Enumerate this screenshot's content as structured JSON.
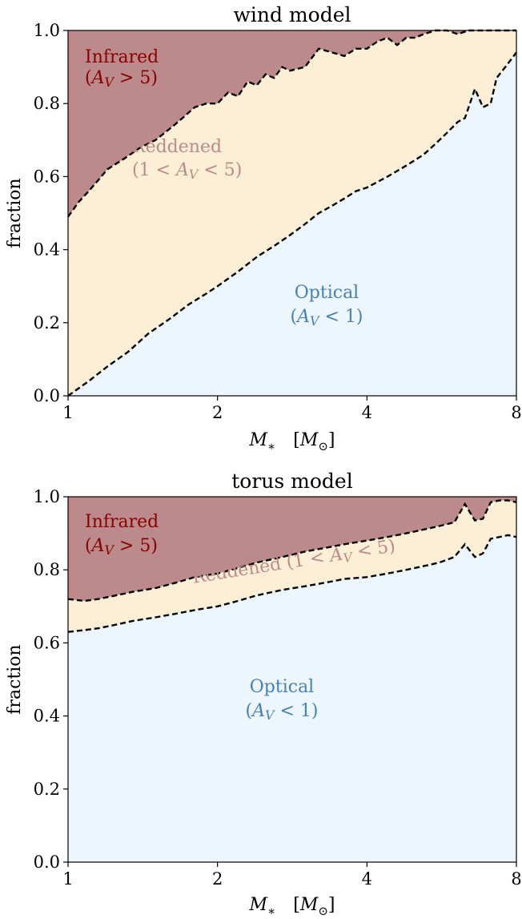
{
  "chart_data": [
    {
      "type": "area",
      "title": "wind model",
      "xlabel": "M* [M⊙]",
      "ylabel": "fraction",
      "x_scale": "log",
      "xlim": [
        1,
        8
      ],
      "ylim": [
        0,
        1
      ],
      "xticks": [
        1,
        2,
        4,
        8
      ],
      "xtick_labels": [
        "1",
        "2",
        "4",
        "8"
      ],
      "yticks": [
        0,
        0.2,
        0.4,
        0.6,
        0.8,
        1.0
      ],
      "ytick_labels": [
        "0.0",
        "0.2",
        "0.4",
        "0.6",
        "0.8",
        "1.0"
      ],
      "grid": false,
      "colors": {
        "infrared": "#bc8a8a",
        "reddened": "#fdefd6",
        "optical": "#eef6fd"
      },
      "region_labels": {
        "infrared": {
          "line1": "Infrared",
          "line2": "(AV > 5)",
          "color": "#8b0000"
        },
        "reddened": {
          "line1": "Reddened",
          "line2": "(1 < AV < 5)",
          "color": "#bc8a8a"
        },
        "optical": {
          "line1": "Optical",
          "line2": "(AV < 1)",
          "color": "#4682b4"
        }
      },
      "series": [
        {
          "name": "Optical",
          "x": [
            1.0,
            1.1,
            1.2,
            1.32,
            1.45,
            1.6,
            1.75,
            1.9,
            2.0,
            2.2,
            2.4,
            2.6,
            2.8,
            3.0,
            3.2,
            3.4,
            3.6,
            3.8,
            4.0,
            4.4,
            4.8,
            5.2,
            5.5,
            5.8,
            6.1,
            6.3,
            6.6,
            6.85,
            7.1,
            7.3,
            7.6,
            7.8,
            8.0
          ],
          "values": [
            0.0,
            0.04,
            0.08,
            0.12,
            0.17,
            0.21,
            0.25,
            0.28,
            0.3,
            0.34,
            0.38,
            0.41,
            0.44,
            0.47,
            0.5,
            0.52,
            0.54,
            0.56,
            0.57,
            0.6,
            0.63,
            0.66,
            0.69,
            0.72,
            0.75,
            0.76,
            0.84,
            0.79,
            0.8,
            0.87,
            0.9,
            0.92,
            0.94
          ]
        },
        {
          "name": "Reddened",
          "x": [
            1.0,
            1.05,
            1.1,
            1.15,
            1.2,
            1.3,
            1.4,
            1.5,
            1.6,
            1.7,
            1.8,
            1.9,
            2.0,
            2.1,
            2.2,
            2.3,
            2.4,
            2.5,
            2.6,
            2.7,
            2.8,
            3.0,
            3.2,
            3.4,
            3.6,
            3.8,
            4.0,
            4.2,
            4.4,
            4.6,
            4.8,
            5.0,
            5.2,
            5.5,
            5.8,
            6.1,
            6.4,
            6.8,
            7.2,
            7.6,
            8.0
          ],
          "values": [
            0.49,
            0.53,
            0.56,
            0.59,
            0.62,
            0.65,
            0.68,
            0.7,
            0.73,
            0.76,
            0.79,
            0.8,
            0.8,
            0.83,
            0.82,
            0.86,
            0.85,
            0.88,
            0.87,
            0.9,
            0.89,
            0.9,
            0.95,
            0.94,
            0.93,
            0.95,
            0.95,
            0.97,
            0.98,
            0.96,
            0.98,
            0.98,
            0.99,
            1.0,
            1.0,
            0.99,
            1.0,
            1.0,
            1.0,
            1.0,
            1.0
          ]
        }
      ]
    },
    {
      "type": "area",
      "title": "torus model",
      "xlabel": "M* [M⊙]",
      "ylabel": "fraction",
      "x_scale": "log",
      "xlim": [
        1,
        8
      ],
      "ylim": [
        0,
        1
      ],
      "xticks": [
        1,
        2,
        4,
        8
      ],
      "xtick_labels": [
        "1",
        "2",
        "4",
        "8"
      ],
      "yticks": [
        0,
        0.2,
        0.4,
        0.6,
        0.8,
        1.0
      ],
      "ytick_labels": [
        "0.0",
        "0.2",
        "0.4",
        "0.6",
        "0.8",
        "1.0"
      ],
      "grid": false,
      "colors": {
        "infrared": "#bc8a8a",
        "reddened": "#fdefd6",
        "optical": "#eef6fd"
      },
      "region_labels": {
        "infrared": {
          "line1": "Infrared",
          "line2": "(AV > 5)",
          "color": "#8b0000"
        },
        "reddened": {
          "line1": "Reddened (1 < AV < 5)",
          "line2": "",
          "color": "#bc8a8a"
        },
        "optical": {
          "line1": "Optical",
          "line2": "(AV < 1)",
          "color": "#4682b4"
        }
      },
      "series": [
        {
          "name": "Optical",
          "x": [
            1.0,
            1.08,
            1.15,
            1.25,
            1.35,
            1.5,
            1.65,
            1.8,
            2.0,
            2.2,
            2.4,
            2.7,
            3.0,
            3.3,
            3.6,
            4.0,
            4.4,
            4.8,
            5.2,
            5.6,
            6.0,
            6.3,
            6.6,
            6.85,
            7.1,
            7.4,
            7.7,
            8.0
          ],
          "values": [
            0.63,
            0.635,
            0.64,
            0.65,
            0.66,
            0.67,
            0.68,
            0.69,
            0.7,
            0.715,
            0.73,
            0.745,
            0.755,
            0.765,
            0.775,
            0.78,
            0.79,
            0.8,
            0.81,
            0.82,
            0.835,
            0.87,
            0.835,
            0.845,
            0.885,
            0.89,
            0.895,
            0.89
          ]
        },
        {
          "name": "Reddened",
          "x": [
            1.0,
            1.08,
            1.15,
            1.25,
            1.35,
            1.5,
            1.65,
            1.8,
            2.0,
            2.2,
            2.4,
            2.7,
            3.0,
            3.3,
            3.6,
            4.0,
            4.4,
            4.8,
            5.2,
            5.6,
            6.0,
            6.3,
            6.6,
            6.85,
            7.1,
            7.4,
            7.7,
            8.0
          ],
          "values": [
            0.72,
            0.715,
            0.72,
            0.73,
            0.74,
            0.75,
            0.765,
            0.78,
            0.79,
            0.805,
            0.82,
            0.835,
            0.85,
            0.86,
            0.87,
            0.88,
            0.89,
            0.9,
            0.91,
            0.92,
            0.93,
            0.98,
            0.935,
            0.94,
            0.985,
            0.99,
            0.99,
            0.985
          ]
        }
      ]
    }
  ]
}
